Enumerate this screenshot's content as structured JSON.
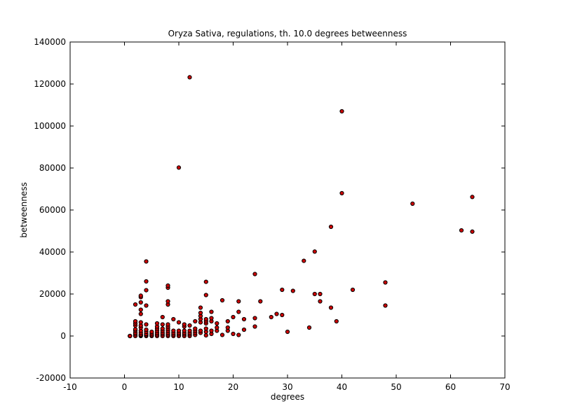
{
  "chart_data": {
    "type": "scatter",
    "title": "Oryza Sativa, regulations, th. 10.0 degrees betweenness",
    "xlabel": "degrees",
    "ylabel": "betweenness",
    "xlim": [
      -10,
      70
    ],
    "ylim": [
      -20000,
      140000
    ],
    "xticks": [
      -10,
      0,
      10,
      20,
      30,
      40,
      50,
      60,
      70
    ],
    "yticks": [
      -20000,
      0,
      20000,
      40000,
      60000,
      80000,
      100000,
      120000,
      140000
    ],
    "grid": false,
    "marker_color": "#cc0000",
    "marker_edge": "#000000",
    "points": [
      [
        1,
        0
      ],
      [
        1,
        0
      ],
      [
        1,
        0
      ],
      [
        1,
        0
      ],
      [
        2,
        0
      ],
      [
        2,
        800
      ],
      [
        2,
        1500
      ],
      [
        2,
        2500
      ],
      [
        2,
        3200
      ],
      [
        2,
        5000
      ],
      [
        2,
        6000
      ],
      [
        2,
        7000
      ],
      [
        2,
        15000
      ],
      [
        3,
        0
      ],
      [
        3,
        300
      ],
      [
        3,
        700
      ],
      [
        3,
        1500
      ],
      [
        3,
        2500
      ],
      [
        3,
        4000
      ],
      [
        3,
        5000
      ],
      [
        3,
        6500
      ],
      [
        3,
        10500
      ],
      [
        3,
        12500
      ],
      [
        3,
        16000
      ],
      [
        3,
        18500
      ],
      [
        3,
        19200
      ],
      [
        4,
        0
      ],
      [
        4,
        500
      ],
      [
        4,
        1000
      ],
      [
        4,
        2000
      ],
      [
        4,
        3000
      ],
      [
        4,
        5500
      ],
      [
        4,
        14500
      ],
      [
        4,
        21800
      ],
      [
        4,
        26000
      ],
      [
        4,
        35500
      ],
      [
        5,
        0
      ],
      [
        5,
        500
      ],
      [
        5,
        1200
      ],
      [
        5,
        2000
      ],
      [
        6,
        0
      ],
      [
        6,
        700
      ],
      [
        6,
        1500
      ],
      [
        6,
        2500
      ],
      [
        6,
        3500
      ],
      [
        6,
        4500
      ],
      [
        6,
        6000
      ],
      [
        7,
        0
      ],
      [
        7,
        800
      ],
      [
        7,
        1500
      ],
      [
        7,
        2500
      ],
      [
        7,
        3500
      ],
      [
        7,
        5500
      ],
      [
        7,
        9000
      ],
      [
        8,
        0
      ],
      [
        8,
        700
      ],
      [
        8,
        1500
      ],
      [
        8,
        2500
      ],
      [
        8,
        3500
      ],
      [
        8,
        4500
      ],
      [
        8,
        5500
      ],
      [
        8,
        15000
      ],
      [
        8,
        16500
      ],
      [
        8,
        23000
      ],
      [
        8,
        24000
      ],
      [
        9,
        0
      ],
      [
        9,
        700
      ],
      [
        9,
        1500
      ],
      [
        9,
        2500
      ],
      [
        9,
        8000
      ],
      [
        10,
        0
      ],
      [
        10,
        800
      ],
      [
        10,
        1500
      ],
      [
        10,
        2500
      ],
      [
        10,
        6500
      ],
      [
        10,
        80200
      ],
      [
        11,
        0
      ],
      [
        11,
        800
      ],
      [
        11,
        1500
      ],
      [
        11,
        2500
      ],
      [
        11,
        4500
      ],
      [
        11,
        5500
      ],
      [
        12,
        0
      ],
      [
        12,
        800
      ],
      [
        12,
        1500
      ],
      [
        12,
        2500
      ],
      [
        12,
        5000
      ],
      [
        12,
        123200
      ],
      [
        13,
        500
      ],
      [
        13,
        1500
      ],
      [
        13,
        2500
      ],
      [
        13,
        3500
      ],
      [
        13,
        7000
      ],
      [
        14,
        1500
      ],
      [
        14,
        2500
      ],
      [
        14,
        6500
      ],
      [
        14,
        8000
      ],
      [
        14,
        9500
      ],
      [
        14,
        11000
      ],
      [
        14,
        13500
      ],
      [
        15,
        300
      ],
      [
        15,
        2000
      ],
      [
        15,
        3500
      ],
      [
        15,
        6000
      ],
      [
        15,
        7000
      ],
      [
        15,
        8000
      ],
      [
        15,
        19500
      ],
      [
        15,
        25800
      ],
      [
        16,
        1000
      ],
      [
        16,
        2500
      ],
      [
        16,
        7000
      ],
      [
        16,
        8500
      ],
      [
        16,
        11500
      ],
      [
        17,
        2500
      ],
      [
        17,
        4000
      ],
      [
        17,
        6000
      ],
      [
        18,
        500
      ],
      [
        18,
        17000
      ],
      [
        19,
        2500
      ],
      [
        19,
        4000
      ],
      [
        19,
        7000
      ],
      [
        20,
        1000
      ],
      [
        20,
        9000
      ],
      [
        21,
        500
      ],
      [
        21,
        11500
      ],
      [
        21,
        16500
      ],
      [
        22,
        3000
      ],
      [
        22,
        8000
      ],
      [
        24,
        4500
      ],
      [
        24,
        8500
      ],
      [
        24,
        29500
      ],
      [
        25,
        16500
      ],
      [
        27,
        9000
      ],
      [
        28,
        10500
      ],
      [
        29,
        10000
      ],
      [
        29,
        22000
      ],
      [
        30,
        2000
      ],
      [
        31,
        21500
      ],
      [
        33,
        35800
      ],
      [
        34,
        4000
      ],
      [
        35,
        20000
      ],
      [
        35,
        40200
      ],
      [
        36,
        16500
      ],
      [
        36,
        20000
      ],
      [
        38,
        13500
      ],
      [
        38,
        52000
      ],
      [
        39,
        7000
      ],
      [
        40,
        68000
      ],
      [
        40,
        107000
      ],
      [
        42,
        22000
      ],
      [
        48,
        14500
      ],
      [
        48,
        25500
      ],
      [
        53,
        63000
      ],
      [
        62,
        50300
      ],
      [
        64,
        49700
      ],
      [
        64,
        66200
      ]
    ]
  }
}
